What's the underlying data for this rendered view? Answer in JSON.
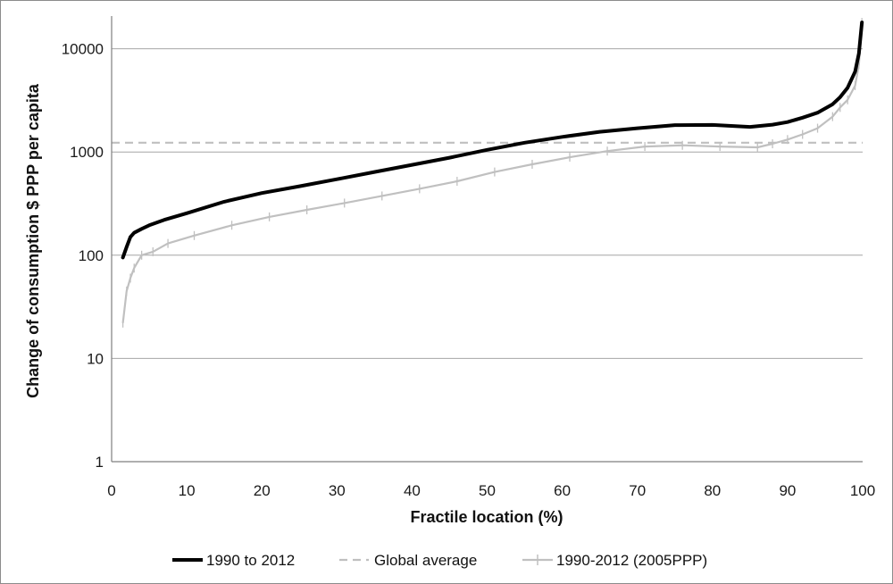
{
  "chart_data": {
    "type": "line",
    "title": "",
    "xlabel": "Fractile location (%)",
    "ylabel": "Change of  consumption $ PPP per capita",
    "xlim": [
      0,
      100
    ],
    "ylim": [
      1,
      20000
    ],
    "y_scale": "log",
    "grid": "horizontal",
    "legend_position": "bottom",
    "x_ticks": [
      "0",
      "10",
      "20",
      "30",
      "40",
      "50",
      "60",
      "70",
      "80",
      "90",
      "100"
    ],
    "y_ticks": [
      "1",
      "10",
      "100",
      "1000",
      "10000"
    ],
    "series": [
      {
        "name": "1990 to 2012",
        "color": "#000000",
        "style": "solid",
        "x": [
          1.5,
          2,
          2.5,
          3,
          4,
          5,
          7,
          10,
          15,
          20,
          25,
          30,
          35,
          40,
          45,
          50,
          55,
          60,
          65,
          70,
          75,
          80,
          85,
          88,
          90,
          92,
          94,
          96,
          97,
          98,
          99,
          99.5,
          99.9
        ],
        "y": [
          95,
          120,
          150,
          165,
          180,
          195,
          220,
          255,
          330,
          400,
          465,
          545,
          640,
          750,
          880,
          1050,
          1230,
          1400,
          1570,
          1700,
          1820,
          1830,
          1750,
          1840,
          1950,
          2150,
          2400,
          2900,
          3400,
          4200,
          6000,
          9000,
          18000
        ]
      },
      {
        "name": "Global average",
        "color": "#bfbfbf",
        "style": "dashed",
        "x": [
          0,
          100
        ],
        "y": [
          1230,
          1230
        ]
      },
      {
        "name": "1990-2012 (2005PPP)",
        "color": "#c0c0c0",
        "style": "solid-with-markers",
        "x": [
          1.5,
          2,
          2.5,
          3,
          4,
          5.5,
          7.5,
          11,
          16,
          21,
          26,
          31,
          36,
          41,
          46,
          51,
          56,
          61,
          66,
          71,
          76,
          81,
          86,
          88,
          90,
          92,
          94,
          96,
          97,
          98,
          99,
          99.5,
          99.9
        ],
        "y": [
          22,
          45,
          60,
          75,
          100,
          108,
          130,
          155,
          195,
          235,
          275,
          320,
          375,
          440,
          520,
          640,
          760,
          890,
          1020,
          1130,
          1160,
          1130,
          1110,
          1200,
          1320,
          1480,
          1700,
          2200,
          2700,
          3200,
          4400,
          7000,
          18000
        ]
      }
    ]
  }
}
